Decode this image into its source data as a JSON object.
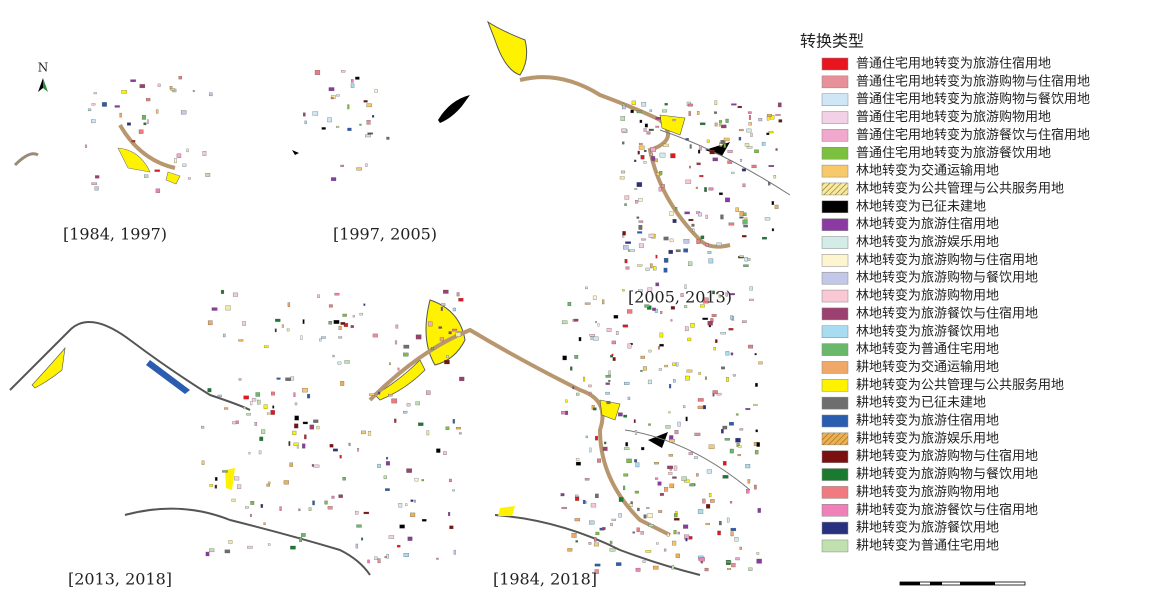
{
  "north": "N",
  "panels": [
    {
      "label": "[1984, 1997)"
    },
    {
      "label": "[1997, 2005)"
    },
    {
      "label": "[2005, 2013)"
    },
    {
      "label": "[2013, 2018]"
    },
    {
      "label": "[1984, 2018]"
    }
  ],
  "legend": {
    "title": "转换类型",
    "items": [
      {
        "label": "普通住宅用地转变为旅游住宿用地",
        "color": "#e8141e"
      },
      {
        "label": "普通住宅用地转变为旅游购物与住宿用地",
        "color": "#e8909a"
      },
      {
        "label": "普通住宅用地转变为旅游购物与餐饮用地",
        "color": "#cfe6f7"
      },
      {
        "label": "普通住宅用地转变为旅游购物用地",
        "color": "#f2d0e6"
      },
      {
        "label": "普通住宅用地转变为旅游餐饮与住宿用地",
        "color": "#f0a8cc"
      },
      {
        "label": "普通住宅用地转变为旅游餐饮用地",
        "color": "#7cc040"
      },
      {
        "label": "林地转变为交通运输用地",
        "color": "#f7c96a"
      },
      {
        "label": "林地转变为公共管理与公共服务用地",
        "color": "#f5eaa0",
        "hatch": true
      },
      {
        "label": "林地转变为已征未建地",
        "color": "#000000"
      },
      {
        "label": "林地转变为旅游住宿用地",
        "color": "#8a3aa0"
      },
      {
        "label": "林地转变为旅游娱乐用地",
        "color": "#d4ece8"
      },
      {
        "label": "林地转变为旅游购物与住宿用地",
        "color": "#fdf5d0"
      },
      {
        "label": "林地转变为旅游购物与餐饮用地",
        "color": "#c4c8e8"
      },
      {
        "label": "林地转变为旅游购物用地",
        "color": "#f9c8d4"
      },
      {
        "label": "林地转变为旅游餐饮与住宿用地",
        "color": "#9c4070"
      },
      {
        "label": "林地转变为旅游餐饮用地",
        "color": "#a8dcf0"
      },
      {
        "label": "林地转变为普通住宅用地",
        "color": "#6ab86a"
      },
      {
        "label": "耕地转变为交通运输用地",
        "color": "#f0a868"
      },
      {
        "label": "耕地转变为公共管理与公共服务用地",
        "color": "#fff200"
      },
      {
        "label": "耕地转变为已征未建地",
        "color": "#6e6e6e"
      },
      {
        "label": "耕地转变为旅游住宿用地",
        "color": "#2a5cb0"
      },
      {
        "label": "耕地转变为旅游娱乐用地",
        "color": "#f0b050",
        "hatch": true
      },
      {
        "label": "耕地转变为旅游购物与住宿用地",
        "color": "#7a1010"
      },
      {
        "label": "耕地转变为旅游购物与餐饮用地",
        "color": "#1a7a30"
      },
      {
        "label": "耕地转变为旅游购物用地",
        "color": "#f07a80"
      },
      {
        "label": "耕地转变为旅游餐饮与住宿用地",
        "color": "#f080b8"
      },
      {
        "label": "耕地转变为旅游餐饮用地",
        "color": "#283080"
      },
      {
        "label": "耕地转变为普通住宅用地",
        "color": "#c0e0b0"
      }
    ]
  }
}
